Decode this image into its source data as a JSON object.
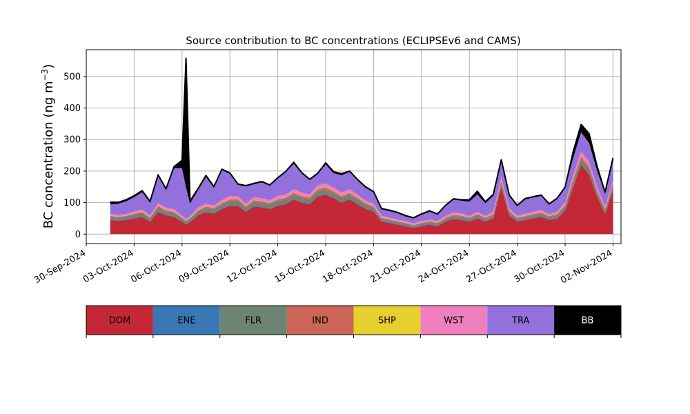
{
  "chart_data": {
    "type": "area",
    "title": "Source contribution to BC concentrations (ECLIPSEv6 and CAMS)",
    "ylabel": "BC concentration (ng m",
    "ylabel_sup": "−3",
    "ylabel_close": ")",
    "ylim": [
      -30,
      585
    ],
    "yticks": [
      0,
      100,
      200,
      300,
      400,
      500
    ],
    "xlim": [
      "2024-09-30T00:00",
      "2024-11-02T12:00"
    ],
    "xticks": [
      "2024-09-30",
      "2024-10-03",
      "2024-10-06",
      "2024-10-09",
      "2024-10-12",
      "2024-10-15",
      "2024-10-18",
      "2024-10-21",
      "2024-10-24",
      "2024-10-27",
      "2024-10-30",
      "2024-11-02"
    ],
    "xtick_labels": [
      "30-Sep-2024",
      "03-Oct-2024",
      "06-Oct-2024",
      "09-Oct-2024",
      "12-Oct-2024",
      "15-Oct-2024",
      "18-Oct-2024",
      "21-Oct-2024",
      "24-Oct-2024",
      "27-Oct-2024",
      "30-Oct-2024",
      "02-Nov-2024"
    ],
    "grid": true,
    "x": [
      "2024-10-01T12:00",
      "2024-10-02T00:00",
      "2024-10-02T12:00",
      "2024-10-03T00:00",
      "2024-10-03T12:00",
      "2024-10-04T00:00",
      "2024-10-04T12:00",
      "2024-10-05T00:00",
      "2024-10-05T12:00",
      "2024-10-06T00:00",
      "2024-10-06T06:00",
      "2024-10-06T12:00",
      "2024-10-07T00:00",
      "2024-10-07T12:00",
      "2024-10-08T00:00",
      "2024-10-08T12:00",
      "2024-10-09T00:00",
      "2024-10-09T12:00",
      "2024-10-10T00:00",
      "2024-10-10T12:00",
      "2024-10-11T00:00",
      "2024-10-11T12:00",
      "2024-10-12T00:00",
      "2024-10-12T12:00",
      "2024-10-13T00:00",
      "2024-10-13T12:00",
      "2024-10-14T00:00",
      "2024-10-14T12:00",
      "2024-10-15T00:00",
      "2024-10-15T12:00",
      "2024-10-16T00:00",
      "2024-10-16T12:00",
      "2024-10-17T00:00",
      "2024-10-17T12:00",
      "2024-10-18T00:00",
      "2024-10-18T12:00",
      "2024-10-19T00:00",
      "2024-10-19T12:00",
      "2024-10-20T00:00",
      "2024-10-20T12:00",
      "2024-10-21T00:00",
      "2024-10-21T12:00",
      "2024-10-22T00:00",
      "2024-10-22T12:00",
      "2024-10-23T00:00",
      "2024-10-23T12:00",
      "2024-10-24T00:00",
      "2024-10-24T12:00",
      "2024-10-25T00:00",
      "2024-10-25T12:00",
      "2024-10-26T00:00",
      "2024-10-26T12:00",
      "2024-10-27T00:00",
      "2024-10-27T12:00",
      "2024-10-28T00:00",
      "2024-10-28T12:00",
      "2024-10-29T00:00",
      "2024-10-29T12:00",
      "2024-10-30T00:00",
      "2024-10-30T12:00",
      "2024-10-31T00:00",
      "2024-10-31T12:00",
      "2024-11-01T00:00",
      "2024-11-01T12:00",
      "2024-11-02T00:00"
    ],
    "series": [
      {
        "name": "DOM",
        "color": "#c42837",
        "values": [
          45,
          42,
          45,
          50,
          55,
          40,
          70,
          60,
          55,
          40,
          30,
          38,
          60,
          70,
          65,
          80,
          90,
          90,
          70,
          88,
          85,
          80,
          90,
          95,
          110,
          100,
          95,
          120,
          125,
          115,
          100,
          110,
          95,
          80,
          72,
          40,
          35,
          30,
          25,
          20,
          25,
          30,
          25,
          40,
          48,
          45,
          40,
          50,
          40,
          50,
          150,
          60,
          40,
          45,
          50,
          55,
          45,
          50,
          75,
          150,
          220,
          190,
          120,
          65,
          140
        ]
      },
      {
        "name": "ENE",
        "color": "#3978b4",
        "values": [
          2,
          2,
          2,
          2,
          2,
          2,
          2,
          2,
          2,
          2,
          2,
          2,
          2,
          2,
          2,
          2,
          2,
          2,
          2,
          2,
          2,
          2,
          2,
          2,
          2,
          2,
          2,
          2,
          2,
          2,
          2,
          2,
          2,
          2,
          2,
          2,
          2,
          2,
          2,
          2,
          2,
          2,
          2,
          2,
          2,
          2,
          2,
          2,
          2,
          2,
          2,
          2,
          2,
          2,
          2,
          2,
          2,
          2,
          2,
          2,
          2,
          2,
          2,
          2,
          2
        ]
      },
      {
        "name": "FLR",
        "color": "#6e8473",
        "values": [
          8,
          8,
          8,
          9,
          10,
          8,
          12,
          10,
          10,
          8,
          7,
          8,
          10,
          11,
          11,
          12,
          13,
          13,
          11,
          12,
          12,
          12,
          13,
          13,
          14,
          13,
          13,
          14,
          14,
          13,
          13,
          13,
          12,
          11,
          10,
          7,
          7,
          6,
          6,
          5,
          6,
          6,
          6,
          7,
          8,
          8,
          7,
          8,
          7,
          8,
          12,
          8,
          7,
          7,
          8,
          8,
          7,
          8,
          10,
          14,
          16,
          15,
          12,
          9,
          12
        ]
      },
      {
        "name": "IND",
        "color": "#cc6658",
        "values": [
          3,
          3,
          3,
          4,
          4,
          3,
          5,
          4,
          4,
          3,
          3,
          3,
          4,
          5,
          5,
          5,
          6,
          6,
          5,
          6,
          5,
          5,
          6,
          6,
          6,
          6,
          6,
          7,
          7,
          6,
          6,
          6,
          6,
          5,
          5,
          3,
          3,
          3,
          3,
          2,
          3,
          3,
          3,
          3,
          4,
          4,
          3,
          4,
          3,
          4,
          6,
          4,
          3,
          4,
          4,
          4,
          3,
          4,
          5,
          7,
          9,
          8,
          6,
          4,
          7
        ]
      },
      {
        "name": "SHP",
        "color": "#e7cf2f",
        "values": [
          1,
          1,
          1,
          1,
          1,
          1,
          1,
          1,
          1,
          1,
          1,
          1,
          1,
          1,
          1,
          1,
          1,
          1,
          1,
          1,
          1,
          1,
          1,
          1,
          1,
          1,
          1,
          1,
          1,
          1,
          1,
          1,
          1,
          1,
          1,
          1,
          1,
          1,
          1,
          1,
          1,
          1,
          1,
          1,
          1,
          1,
          1,
          1,
          1,
          1,
          1,
          1,
          1,
          1,
          1,
          1,
          1,
          1,
          1,
          1,
          1,
          1,
          1,
          1,
          1
        ]
      },
      {
        "name": "WST",
        "color": "#f07fbe",
        "values": [
          5,
          5,
          5,
          6,
          6,
          5,
          8,
          7,
          7,
          5,
          5,
          5,
          7,
          7,
          7,
          8,
          9,
          9,
          7,
          9,
          9,
          8,
          9,
          9,
          10,
          10,
          9,
          11,
          12,
          11,
          10,
          10,
          9,
          8,
          7,
          5,
          5,
          4,
          4,
          4,
          4,
          4,
          4,
          5,
          6,
          6,
          5,
          6,
          5,
          6,
          10,
          6,
          5,
          6,
          6,
          6,
          5,
          6,
          8,
          12,
          15,
          13,
          10,
          7,
          10
        ]
      },
      {
        "name": "TRA",
        "color": "#9370db",
        "values": [
          30,
          35,
          40,
          45,
          55,
          40,
          85,
          55,
          130,
          150,
          100,
          40,
          55,
          85,
          55,
          95,
          70,
          35,
          55,
          40,
          50,
          45,
          55,
          70,
          80,
          60,
          45,
          35,
          60,
          45,
          55,
          55,
          45,
          40,
          35,
          20,
          20,
          20,
          15,
          15,
          20,
          25,
          20,
          30,
          40,
          40,
          45,
          55,
          40,
          50,
          50,
          40,
          30,
          45,
          45,
          45,
          30,
          40,
          45,
          55,
          60,
          60,
          50,
          40,
          60
        ]
      },
      {
        "name": "BB",
        "color": "#000000",
        "values": [
          8,
          5,
          5,
          5,
          5,
          5,
          5,
          5,
          5,
          25,
          410,
          8,
          5,
          5,
          5,
          3,
          3,
          3,
          3,
          3,
          3,
          3,
          3,
          3,
          5,
          3,
          3,
          3,
          5,
          5,
          5,
          3,
          3,
          3,
          3,
          3,
          3,
          3,
          3,
          3,
          3,
          3,
          3,
          3,
          3,
          3,
          6,
          10,
          5,
          5,
          5,
          3,
          3,
          3,
          3,
          3,
          3,
          3,
          3,
          20,
          25,
          30,
          15,
          5,
          10
        ]
      }
    ],
    "legend": [
      {
        "label": "DOM",
        "color": "#c42837",
        "text_color": "#000000"
      },
      {
        "label": "ENE",
        "color": "#3978b4",
        "text_color": "#000000"
      },
      {
        "label": "FLR",
        "color": "#6e8473",
        "text_color": "#000000"
      },
      {
        "label": "IND",
        "color": "#cc6658",
        "text_color": "#000000"
      },
      {
        "label": "SHP",
        "color": "#e7cf2f",
        "text_color": "#000000"
      },
      {
        "label": "WST",
        "color": "#f07fbe",
        "text_color": "#000000"
      },
      {
        "label": "TRA",
        "color": "#9370db",
        "text_color": "#000000"
      },
      {
        "label": "BB",
        "color": "#000000",
        "text_color": "#ffffff"
      }
    ],
    "legend_placement": "bottom"
  }
}
